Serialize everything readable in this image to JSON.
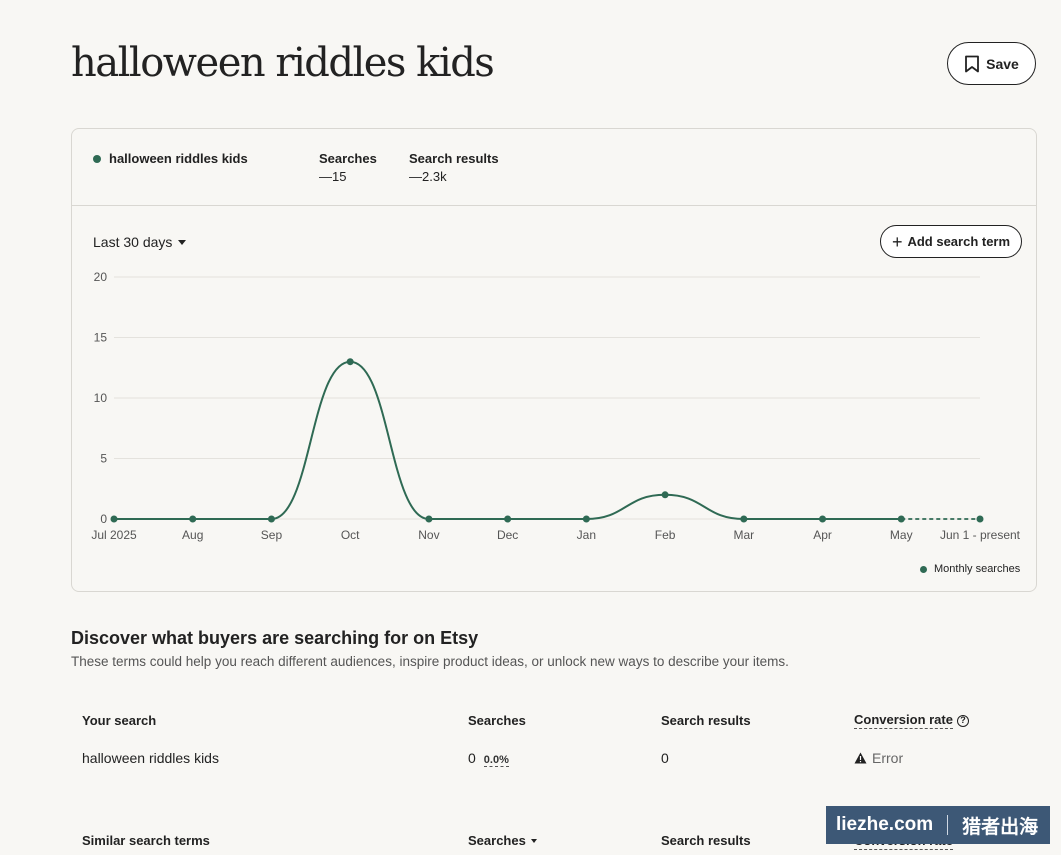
{
  "page": {
    "title": "halloween riddles kids",
    "save_label": "Save"
  },
  "summary": {
    "term": "halloween riddles kids",
    "searches_label": "Searches",
    "searches_value": "—15",
    "results_label": "Search results",
    "results_value": "—2.3k"
  },
  "controls": {
    "period": "Last 30 days",
    "add_term_label": "Add search term"
  },
  "legend": {
    "label": "Monthly searches"
  },
  "colors": {
    "series": "#2f6a54",
    "grid": "#e4e2dd"
  },
  "chart_data": {
    "type": "line",
    "categories": [
      "Jul 2025",
      "Aug",
      "Sep",
      "Oct",
      "Nov",
      "Dec",
      "Jan",
      "Feb",
      "Mar",
      "Apr",
      "May",
      "Jun 1 - present"
    ],
    "series": [
      {
        "name": "Monthly searches",
        "values": [
          0,
          0,
          0,
          13,
          0,
          0,
          0,
          2,
          0,
          0,
          0,
          0
        ]
      }
    ],
    "y_ticks": [
      0,
      5,
      10,
      15,
      20
    ],
    "ylim": [
      0,
      20
    ],
    "grid": true,
    "last_segment_dashed": true,
    "legend_position": "bottom-right"
  },
  "discover": {
    "title": "Discover what buyers are searching for on Etsy",
    "subtitle": "These terms could help you reach different audiences, inspire product ideas, or unlock new ways to describe your items."
  },
  "your_search_table": {
    "headers": [
      "Your search",
      "Searches",
      "Search results",
      "Conversion rate"
    ],
    "help_icon": "?",
    "row": {
      "term": "halloween riddles kids",
      "searches": "0",
      "searches_change": "0.0%",
      "results": "0",
      "conversion": "Error"
    }
  },
  "similar_table": {
    "headers": [
      "Similar search terms",
      "Searches",
      "Search results",
      "Conversion rate"
    ]
  },
  "watermark": {
    "left": "liezhe.com",
    "right": "猎者出海"
  }
}
